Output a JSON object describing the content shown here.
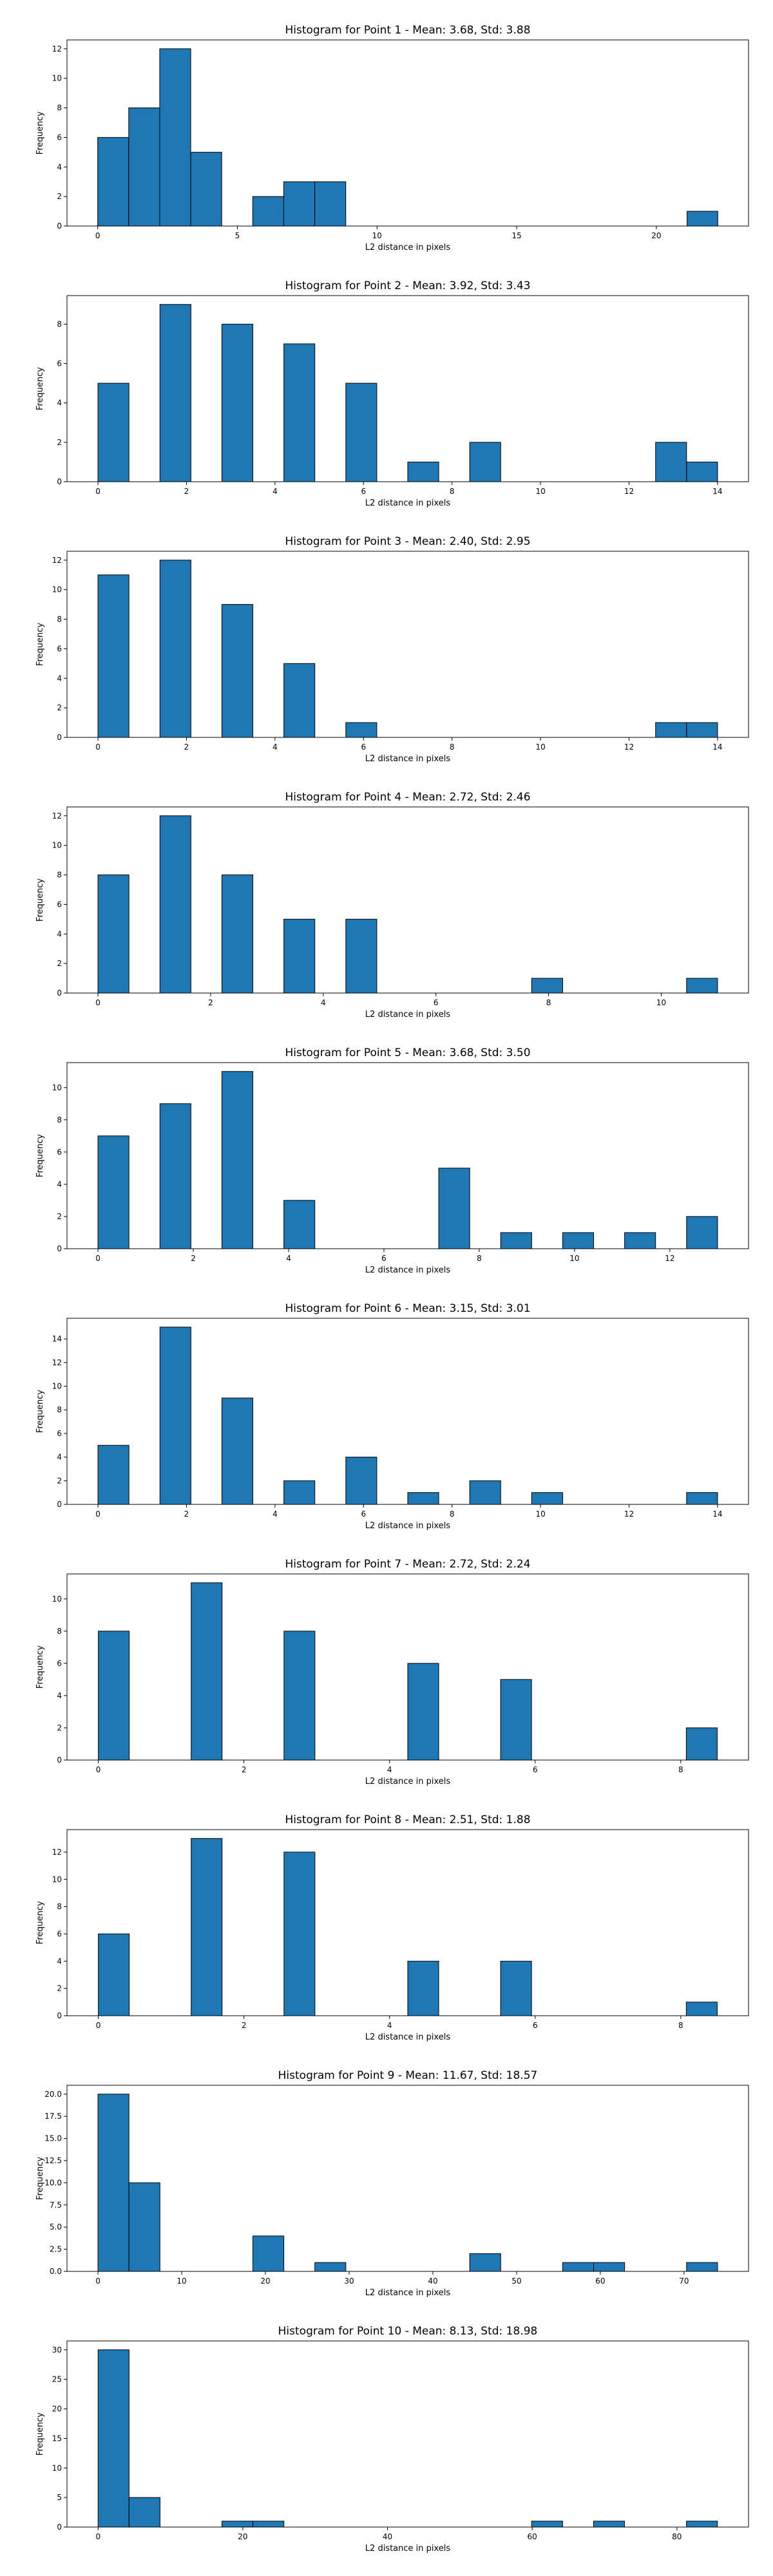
{
  "colors": {
    "bar": "#1f77b4",
    "edge": "#000000",
    "background": "#ffffff"
  },
  "chart_data": [
    {
      "type": "bar",
      "title": "Histogram for Point 1 - Mean: 3.68, Std: 3.88",
      "xlabel": "L2 distance in pixels",
      "ylabel": "Frequency",
      "xlim": [
        -1.1,
        23.3
      ],
      "ylim": [
        0,
        12.6
      ],
      "xticks": [
        0,
        5,
        10,
        15,
        20
      ],
      "xtick_labels": [
        "0",
        "5",
        "10",
        "15",
        "20"
      ],
      "yticks": [
        0,
        2,
        4,
        6,
        8,
        10,
        12
      ],
      "ytick_labels": [
        "0",
        "2",
        "4",
        "6",
        "8",
        "10",
        "12"
      ],
      "grid": false,
      "bins": [
        [
          0,
          1.11,
          6
        ],
        [
          1.11,
          2.22,
          8
        ],
        [
          2.22,
          3.33,
          12
        ],
        [
          3.33,
          4.44,
          5
        ],
        [
          5.55,
          6.66,
          2
        ],
        [
          6.66,
          7.77,
          3
        ],
        [
          7.77,
          8.88,
          3
        ],
        [
          21.1,
          22.2,
          1
        ]
      ]
    },
    {
      "type": "bar",
      "title": "Histogram for Point 2 - Mean: 3.92, Std: 3.43",
      "xlabel": "L2 distance in pixels",
      "ylabel": "Frequency",
      "xlim": [
        -0.7,
        14.7
      ],
      "ylim": [
        0,
        9.45
      ],
      "xticks": [
        0,
        2,
        4,
        6,
        8,
        10,
        12,
        14
      ],
      "xtick_labels": [
        "0",
        "2",
        "4",
        "6",
        "8",
        "10",
        "12",
        "14"
      ],
      "yticks": [
        0,
        2,
        4,
        6,
        8
      ],
      "ytick_labels": [
        "0",
        "2",
        "4",
        "6",
        "8"
      ],
      "grid": false,
      "bins": [
        [
          0,
          0.7,
          5
        ],
        [
          1.4,
          2.1,
          9
        ],
        [
          2.8,
          3.5,
          8
        ],
        [
          4.2,
          4.9,
          7
        ],
        [
          5.6,
          6.3,
          5
        ],
        [
          7.0,
          7.7,
          1
        ],
        [
          8.4,
          9.1,
          2
        ],
        [
          12.6,
          13.3,
          2
        ],
        [
          13.3,
          14.0,
          1
        ]
      ]
    },
    {
      "type": "bar",
      "title": "Histogram for Point 3 - Mean: 2.40, Std: 2.95",
      "xlabel": "L2 distance in pixels",
      "ylabel": "Frequency",
      "xlim": [
        -0.7,
        14.7
      ],
      "ylim": [
        0,
        12.6
      ],
      "xticks": [
        0,
        2,
        4,
        6,
        8,
        10,
        12,
        14
      ],
      "xtick_labels": [
        "0",
        "2",
        "4",
        "6",
        "8",
        "10",
        "12",
        "14"
      ],
      "yticks": [
        0,
        2,
        4,
        6,
        8,
        10,
        12
      ],
      "ytick_labels": [
        "0",
        "2",
        "4",
        "6",
        "8",
        "10",
        "12"
      ],
      "grid": false,
      "bins": [
        [
          0,
          0.7,
          11
        ],
        [
          1.4,
          2.1,
          12
        ],
        [
          2.8,
          3.5,
          9
        ],
        [
          4.2,
          4.9,
          5
        ],
        [
          5.6,
          6.3,
          1
        ],
        [
          12.6,
          13.3,
          1
        ],
        [
          13.3,
          14.0,
          1
        ]
      ]
    },
    {
      "type": "bar",
      "title": "Histogram for Point 4 - Mean: 2.72, Std: 2.46",
      "xlabel": "L2 distance in pixels",
      "ylabel": "Frequency",
      "xlim": [
        -0.55,
        11.55
      ],
      "ylim": [
        0,
        12.6
      ],
      "xticks": [
        0,
        2,
        4,
        6,
        8,
        10
      ],
      "xtick_labels": [
        "0",
        "2",
        "4",
        "6",
        "8",
        "10"
      ],
      "yticks": [
        0,
        2,
        4,
        6,
        8,
        10,
        12
      ],
      "ytick_labels": [
        "0",
        "2",
        "4",
        "6",
        "8",
        "10",
        "12"
      ],
      "grid": false,
      "bins": [
        [
          0,
          0.55,
          8
        ],
        [
          1.1,
          1.65,
          12
        ],
        [
          2.2,
          2.75,
          8
        ],
        [
          3.3,
          3.85,
          5
        ],
        [
          4.4,
          4.95,
          5
        ],
        [
          7.7,
          8.25,
          1
        ],
        [
          10.45,
          11.0,
          1
        ]
      ]
    },
    {
      "type": "bar",
      "title": "Histogram for Point 5 - Mean: 3.68, Std: 3.50",
      "xlabel": "L2 distance in pixels",
      "ylabel": "Frequency",
      "xlim": [
        -0.65,
        13.65
      ],
      "ylim": [
        0,
        11.55
      ],
      "xticks": [
        0,
        2,
        4,
        6,
        8,
        10,
        12
      ],
      "xtick_labels": [
        "0",
        "2",
        "4",
        "6",
        "8",
        "10",
        "12"
      ],
      "yticks": [
        0,
        2,
        4,
        6,
        8,
        10
      ],
      "ytick_labels": [
        "0",
        "2",
        "4",
        "6",
        "8",
        "10"
      ],
      "grid": false,
      "bins": [
        [
          0,
          0.65,
          7
        ],
        [
          1.3,
          1.95,
          9
        ],
        [
          2.6,
          3.25,
          11
        ],
        [
          3.9,
          4.55,
          3
        ],
        [
          7.15,
          7.8,
          5
        ],
        [
          8.45,
          9.1,
          1
        ],
        [
          9.75,
          10.4,
          1
        ],
        [
          11.05,
          11.7,
          1
        ],
        [
          12.35,
          13.0,
          2
        ]
      ]
    },
    {
      "type": "bar",
      "title": "Histogram for Point 6 - Mean: 3.15, Std: 3.01",
      "xlabel": "L2 distance in pixels",
      "ylabel": "Frequency",
      "xlim": [
        -0.7,
        14.7
      ],
      "ylim": [
        0,
        15.75
      ],
      "xticks": [
        0,
        2,
        4,
        6,
        8,
        10,
        12,
        14
      ],
      "xtick_labels": [
        "0",
        "2",
        "4",
        "6",
        "8",
        "10",
        "12",
        "14"
      ],
      "yticks": [
        0,
        2,
        4,
        6,
        8,
        10,
        12,
        14
      ],
      "ytick_labels": [
        "0",
        "2",
        "4",
        "6",
        "8",
        "10",
        "12",
        "14"
      ],
      "grid": false,
      "bins": [
        [
          0,
          0.7,
          5
        ],
        [
          1.4,
          2.1,
          15
        ],
        [
          2.8,
          3.5,
          9
        ],
        [
          4.2,
          4.9,
          2
        ],
        [
          5.6,
          6.3,
          4
        ],
        [
          7.0,
          7.7,
          1
        ],
        [
          8.4,
          9.1,
          2
        ],
        [
          9.8,
          10.5,
          1
        ],
        [
          13.3,
          14.0,
          1
        ]
      ]
    },
    {
      "type": "bar",
      "title": "Histogram for Point 7 - Mean: 2.72, Std: 2.24",
      "xlabel": "L2 distance in pixels",
      "ylabel": "Frequency",
      "xlim": [
        -0.43,
        8.93
      ],
      "ylim": [
        0,
        11.55
      ],
      "xticks": [
        0,
        2,
        4,
        6,
        8
      ],
      "xtick_labels": [
        "0",
        "2",
        "4",
        "6",
        "8"
      ],
      "yticks": [
        0,
        2,
        4,
        6,
        8,
        10
      ],
      "ytick_labels": [
        "0",
        "2",
        "4",
        "6",
        "8",
        "10"
      ],
      "grid": false,
      "bins": [
        [
          0,
          0.425,
          8
        ],
        [
          1.275,
          1.7,
          11
        ],
        [
          2.55,
          2.975,
          8
        ],
        [
          4.25,
          4.675,
          6
        ],
        [
          5.525,
          5.95,
          5
        ],
        [
          8.075,
          8.5,
          2
        ]
      ]
    },
    {
      "type": "bar",
      "title": "Histogram for Point 8 - Mean: 2.51, Std: 1.88",
      "xlabel": "L2 distance in pixels",
      "ylabel": "Frequency",
      "xlim": [
        -0.43,
        8.93
      ],
      "ylim": [
        0,
        13.65
      ],
      "xticks": [
        0,
        2,
        4,
        6,
        8
      ],
      "xtick_labels": [
        "0",
        "2",
        "4",
        "6",
        "8"
      ],
      "yticks": [
        0,
        2,
        4,
        6,
        8,
        10,
        12
      ],
      "ytick_labels": [
        "0",
        "2",
        "4",
        "6",
        "8",
        "10",
        "12"
      ],
      "grid": false,
      "bins": [
        [
          0,
          0.425,
          6
        ],
        [
          1.275,
          1.7,
          13
        ],
        [
          2.55,
          2.975,
          12
        ],
        [
          4.25,
          4.675,
          4
        ],
        [
          5.525,
          5.95,
          4
        ],
        [
          8.075,
          8.5,
          1
        ]
      ]
    },
    {
      "type": "bar",
      "title": "Histogram for Point 9 - Mean: 11.67, Std: 18.57",
      "xlabel": "L2 distance in pixels",
      "ylabel": "Frequency",
      "xlim": [
        -3.7,
        77.7
      ],
      "ylim": [
        0,
        21.0
      ],
      "xticks": [
        0,
        10,
        20,
        30,
        40,
        50,
        60,
        70
      ],
      "xtick_labels": [
        "0",
        "10",
        "20",
        "30",
        "40",
        "50",
        "60",
        "70"
      ],
      "yticks": [
        0,
        2.5,
        5,
        7.5,
        10,
        12.5,
        15,
        17.5,
        20
      ],
      "ytick_labels": [
        "0.0",
        "2.5",
        "5.0",
        "7.5",
        "10.0",
        "12.5",
        "15.0",
        "17.5",
        "20.0"
      ],
      "grid": false,
      "bins": [
        [
          0,
          3.7,
          20
        ],
        [
          3.7,
          7.4,
          10
        ],
        [
          18.5,
          22.2,
          4
        ],
        [
          25.9,
          29.6,
          1
        ],
        [
          44.4,
          48.1,
          2
        ],
        [
          55.5,
          59.2,
          1
        ],
        [
          59.2,
          62.9,
          1
        ],
        [
          70.3,
          74.0,
          1
        ]
      ]
    },
    {
      "type": "bar",
      "title": "Histogram for Point 10 - Mean: 8.13, Std: 18.98",
      "xlabel": "L2 distance in pixels",
      "ylabel": "Frequency",
      "xlim": [
        -4.3,
        89.9
      ],
      "ylim": [
        0,
        31.5
      ],
      "xticks": [
        0,
        20,
        40,
        60,
        80
      ],
      "xtick_labels": [
        "0",
        "20",
        "40",
        "60",
        "80"
      ],
      "yticks": [
        0,
        5,
        10,
        15,
        20,
        25,
        30
      ],
      "ytick_labels": [
        "0",
        "5",
        "10",
        "15",
        "20",
        "25",
        "30"
      ],
      "grid": false,
      "bins": [
        [
          0,
          4.28,
          30
        ],
        [
          4.28,
          8.56,
          5
        ],
        [
          17.12,
          21.4,
          1
        ],
        [
          21.4,
          25.68,
          1
        ],
        [
          59.92,
          64.2,
          1
        ],
        [
          68.48,
          72.76,
          1
        ],
        [
          81.32,
          85.6,
          1
        ]
      ]
    }
  ]
}
